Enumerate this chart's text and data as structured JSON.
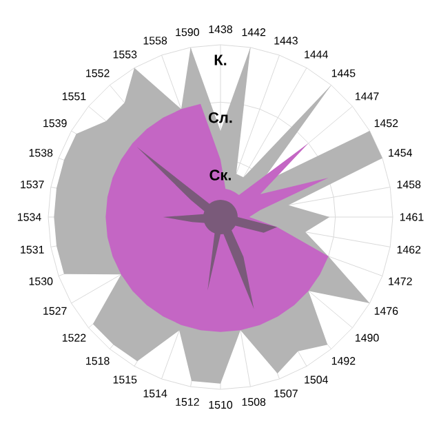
{
  "chart_data": {
    "type": "radar",
    "categories": [
      "1438",
      "1442",
      "1443",
      "1444",
      "1445",
      "1447",
      "1452",
      "1454",
      "1458",
      "1461",
      "1462",
      "1472",
      "1476",
      "1490",
      "1492",
      "1504",
      "1507",
      "1508",
      "1510",
      "1512",
      "1514",
      "1515",
      "1518",
      "1522",
      "1527",
      "1530",
      "1531",
      "1534",
      "1537",
      "1538",
      "1539",
      "1551",
      "1552",
      "1553",
      "1558",
      "1590"
    ],
    "ylim": [
      0,
      3
    ],
    "yticks": [
      {
        "value": 1,
        "label": "Ск."
      },
      {
        "value": 2,
        "label": "Сл."
      },
      {
        "value": 3,
        "label": "К."
      }
    ],
    "grid": true,
    "series": [
      {
        "color": "#b4b4b4",
        "values": [
          1.5,
          3,
          0.8,
          0.8,
          3,
          0.9,
          3,
          3,
          1.2,
          1.9,
          1.5,
          2,
          3,
          2,
          2.9,
          2.7,
          2.9,
          2,
          2.9,
          2.9,
          2.1,
          2.9,
          2.9,
          2.9,
          2,
          2.9,
          2.9,
          2.9,
          2.9,
          2.9,
          2.9,
          2.6,
          2.6,
          3,
          2,
          3
        ]
      },
      {
        "color": "#c466c4",
        "values": [
          1,
          0.5,
          0.5,
          0.5,
          0.5,
          2,
          0.8,
          2,
          0.7,
          0.5,
          1,
          2,
          2,
          2,
          2,
          2,
          2,
          2,
          2,
          2,
          2,
          2,
          2,
          2,
          2,
          2,
          2,
          2,
          2,
          2,
          2,
          2,
          2,
          2,
          2,
          2
        ]
      },
      {
        "color": "#7a5a7a",
        "values": [
          0.3,
          0.3,
          0.3,
          0.3,
          0.3,
          0.3,
          0.3,
          0.3,
          0.3,
          0.3,
          1,
          0.8,
          0.3,
          0.3,
          0.3,
          0.8,
          1.7,
          0.3,
          0.3,
          1.3,
          0.3,
          0.3,
          0.3,
          0.3,
          0.3,
          0.3,
          0.5,
          1,
          0.3,
          0.3,
          0.6,
          1.9,
          0.3,
          0.3,
          0.3,
          0.3
        ]
      }
    ]
  }
}
